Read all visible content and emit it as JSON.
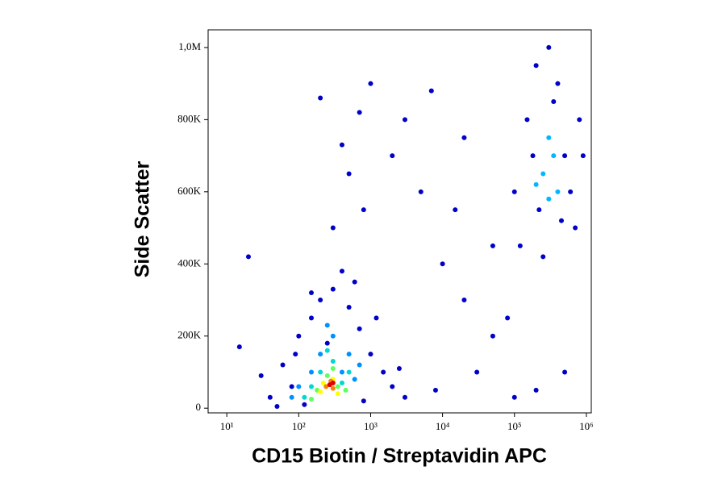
{
  "chart_data": {
    "type": "scatter",
    "x_label": "CD15 Biotin / Streptavidin APC",
    "y_label": "Side Scatter",
    "x_scale": "log",
    "xlim": [
      5.5,
      1170000
    ],
    "ylim": [
      -13000,
      1049000
    ],
    "xticks": [
      {
        "value": 10,
        "label": "10¹"
      },
      {
        "value": 100,
        "label": "10²"
      },
      {
        "value": 1000,
        "label": "10³"
      },
      {
        "value": 10000,
        "label": "10⁴"
      },
      {
        "value": 100000,
        "label": "10⁵"
      },
      {
        "value": 1000000,
        "label": "10⁶"
      }
    ],
    "yticks": [
      0,
      {
        "value": 200000,
        "label": "200K"
      },
      {
        "value": 400000,
        "label": "400K"
      },
      {
        "value": 600000,
        "label": "600K"
      },
      {
        "value": 800000,
        "label": "800K"
      },
      {
        "value": 1000000,
        "label": "1,0M"
      }
    ],
    "x": [
      40,
      60,
      80,
      100,
      120,
      150,
      200,
      300,
      500,
      700,
      1000,
      1500,
      2000,
      3000,
      50,
      800,
      400,
      250,
      600,
      150,
      1200,
      90,
      30,
      2500,
      20,
      15,
      300,
      500,
      700,
      1000,
      2000,
      5000,
      10000,
      20000,
      50000,
      30000,
      8000,
      3000,
      800,
      100000,
      200000,
      500000,
      50000,
      20000,
      7000,
      400,
      200,
      80000,
      15000,
      100000,
      150000,
      200000,
      300000,
      400000,
      500000,
      700000,
      800000,
      120000,
      250000,
      600000,
      900000,
      350000,
      180000,
      450000,
      220000,
      250000,
      300000,
      350000,
      200000,
      400000,
      300000,
      150,
      200,
      300,
      500,
      400,
      100,
      250,
      600,
      80,
      700,
      150,
      200,
      300,
      400,
      120,
      500,
      250,
      180,
      250,
      350,
      150,
      450,
      300,
      200,
      300,
      350,
      220,
      240,
      300,
      280,
      270,
      300
    ],
    "values": [
      30000,
      120000,
      60000,
      200000,
      10000,
      250000,
      300000,
      330000,
      280000,
      220000,
      150000,
      100000,
      60000,
      30000,
      5000,
      20000,
      380000,
      180000,
      350000,
      320000,
      250000,
      150000,
      90000,
      110000,
      420000,
      170000,
      500000,
      650000,
      820000,
      900000,
      700000,
      600000,
      400000,
      300000,
      200000,
      100000,
      50000,
      800000,
      550000,
      30000,
      50000,
      100000,
      450000,
      750000,
      880000,
      730000,
      860000,
      250000,
      550000,
      600000,
      800000,
      950000,
      1000000,
      900000,
      700000,
      500000,
      800000,
      450000,
      420000,
      600000,
      700000,
      850000,
      700000,
      520000,
      550000,
      650000,
      580000,
      700000,
      620000,
      600000,
      750000,
      100000,
      150000,
      200000,
      150000,
      100000,
      60000,
      230000,
      80000,
      30000,
      120000,
      60000,
      100000,
      130000,
      70000,
      30000,
      100000,
      160000,
      50000,
      90000,
      60000,
      25000,
      50000,
      110000,
      45000,
      80000,
      40000,
      70000,
      60000,
      55000,
      75000,
      65000,
      70000
    ],
    "colors": [
      "#0000c8",
      "#0000c8",
      "#0000c8",
      "#0000c8",
      "#0000c8",
      "#0000c8",
      "#0000c8",
      "#0000c8",
      "#0000c8",
      "#0000c8",
      "#0000c8",
      "#0000c8",
      "#0000c8",
      "#0000c8",
      "#0000c8",
      "#0000c8",
      "#0000c8",
      "#0000c8",
      "#0000c8",
      "#0000c8",
      "#0000c8",
      "#0000c8",
      "#0000c8",
      "#0000c8",
      "#0000c8",
      "#0000c8",
      "#0000c8",
      "#0000c8",
      "#0000c8",
      "#0000c8",
      "#0000c8",
      "#0000c8",
      "#0000c8",
      "#0000c8",
      "#0000c8",
      "#0000c8",
      "#0000c8",
      "#0000c8",
      "#0000c8",
      "#0000c8",
      "#0000c8",
      "#0000c8",
      "#0000c8",
      "#0000c8",
      "#0000c8",
      "#0000c8",
      "#0000c8",
      "#0000c8",
      "#0000c8",
      "#0000c8",
      "#0000c8",
      "#0000c8",
      "#0000c8",
      "#0000c8",
      "#0000c8",
      "#0000c8",
      "#0000c8",
      "#0000c8",
      "#0000c8",
      "#0000c8",
      "#0000c8",
      "#0000c8",
      "#0000c8",
      "#0000c8",
      "#0000c8",
      "#00b8ff",
      "#00b8ff",
      "#00b8ff",
      "#00b8ff",
      "#00b8ff",
      "#00b8ff",
      "#0090ff",
      "#0090ff",
      "#0090ff",
      "#0090ff",
      "#0090ff",
      "#0090ff",
      "#0090ff",
      "#0090ff",
      "#0090ff",
      "#0090ff",
      "#00d8d0",
      "#00d8d0",
      "#00d8d0",
      "#00d8d0",
      "#00d8d0",
      "#00d8d0",
      "#00d8d0",
      "#60ff60",
      "#60ff60",
      "#60ff60",
      "#60ff60",
      "#60ff60",
      "#60ff60",
      "#ffff00",
      "#ffff00",
      "#ffff00",
      "#ffff00",
      "#ff8000",
      "#ff8000",
      "#ff8000",
      "#e00000",
      "#e00000"
    ]
  }
}
